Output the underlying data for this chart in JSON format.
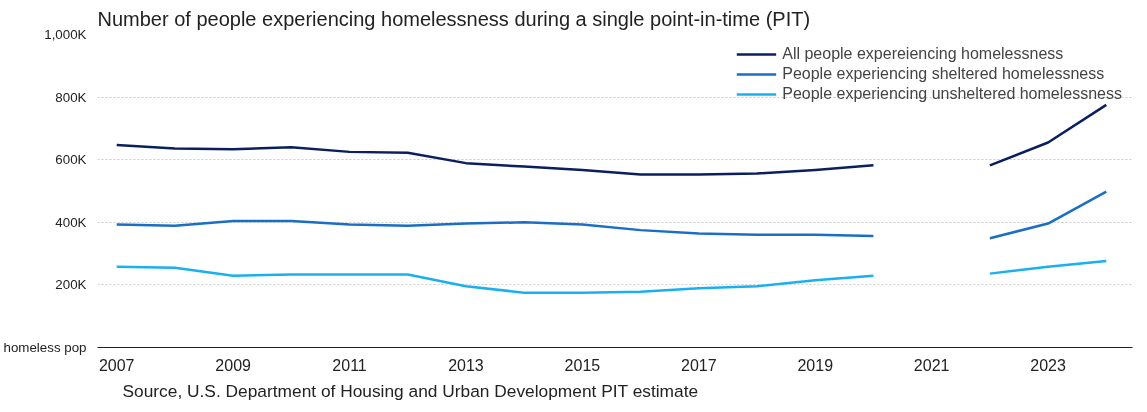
{
  "chart_data": {
    "type": "line",
    "title": "Number of people experiencing homelessness during a single point-in-time (PIT)",
    "x": [
      2007,
      2008,
      2009,
      2010,
      2011,
      2012,
      2013,
      2014,
      2015,
      2016,
      2017,
      2018,
      2019,
      2020,
      2021,
      2022,
      2023,
      2024
    ],
    "series": [
      {
        "name": "All people expereiencing homelessness",
        "color": "#0b1f5e",
        "values": [
          647000,
          636000,
          633000,
          640000,
          625000,
          622000,
          589000,
          578000,
          567000,
          553000,
          553000,
          556000,
          567000,
          582000,
          null,
          582000,
          655000,
          775000
        ]
      },
      {
        "name": "People experiencing sheltered homelessness",
        "color": "#1a6fc4",
        "values": [
          393000,
          389000,
          404000,
          404000,
          393000,
          389000,
          396000,
          400000,
          393000,
          375000,
          364000,
          360000,
          360000,
          356000,
          null,
          349000,
          396000,
          498000
        ]
      },
      {
        "name": "People experiencing unsheltered homelessness",
        "color": "#1ab0f0",
        "values": [
          258000,
          255000,
          229000,
          233000,
          233000,
          233000,
          196000,
          175000,
          175000,
          178000,
          189000,
          196000,
          215000,
          229000,
          null,
          236000,
          258000,
          276000
        ]
      }
    ],
    "xlim": [
      2006.67,
      2024.45
    ],
    "xticks": [
      2007,
      2009,
      2011,
      2013,
      2015,
      2017,
      2019,
      2021,
      2023
    ],
    "ylim": [
      0,
      1000000
    ],
    "yticks": [
      {
        "value": 0,
        "label": "homeless pop"
      },
      {
        "value": 200000,
        "label": "200K"
      },
      {
        "value": 400000,
        "label": "400K"
      },
      {
        "value": 600000,
        "label": "600K"
      },
      {
        "value": 800000,
        "label": "800K"
      },
      {
        "value": 1000000,
        "label": "1,000K"
      }
    ],
    "grid": "y",
    "legend": "top right",
    "marker": "none",
    "line_style": "solid",
    "annotations": [
      "Source, U.S. Department of Housing and Urban Development PIT estimate"
    ]
  }
}
